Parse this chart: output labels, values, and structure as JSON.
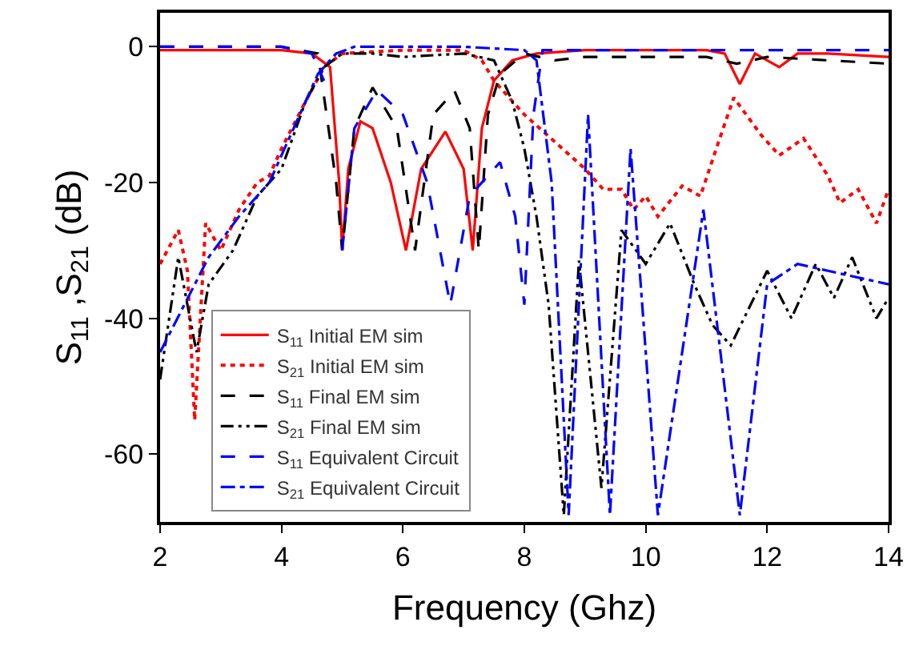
{
  "chart_data": {
    "type": "line",
    "xlabel": "Frequency (Ghz)",
    "ylabel": "S$_{11}$ ,S$_{21}$ (dB)",
    "xlim": [
      2,
      14
    ],
    "ylim": [
      -70,
      5
    ],
    "xticks": [
      2,
      4,
      6,
      8,
      10,
      12,
      14
    ],
    "yticks": [
      -60,
      -40,
      -20,
      0
    ],
    "legend": "bottom left",
    "marker": "none",
    "series": [
      {
        "name": "S$_{11}$ Initial EM sim",
        "color": "#ff0000",
        "line_style": "solid",
        "x": [
          2,
          3,
          4,
          4.5,
          4.8,
          4.95,
          5.0,
          5.1,
          5.3,
          5.5,
          5.8,
          6.05,
          6.3,
          6.7,
          7.0,
          7.15,
          7.3,
          7.5,
          7.8,
          8.2,
          9,
          10,
          11,
          11.3,
          11.55,
          11.8,
          12.2,
          12.5,
          13,
          14
        ],
        "values": [
          -0.5,
          -0.5,
          -0.5,
          -1,
          -3,
          -20,
          -30,
          -18,
          -11,
          -12,
          -20,
          -30,
          -18,
          -12.5,
          -18,
          -30,
          -12,
          -5,
          -2,
          -1,
          -0.5,
          -0.5,
          -0.5,
          -1,
          -5.5,
          -1,
          -3,
          -1,
          -1,
          -1.5
        ]
      },
      {
        "name": "S$_{21}$ Initial EM sim",
        "color": "#ff0000",
        "line_style": "dotted",
        "x": [
          2,
          2.3,
          2.45,
          2.57,
          2.75,
          3.0,
          3.3,
          3.6,
          3.8,
          4.0,
          4.4,
          4.7,
          5,
          6,
          7,
          7.3,
          7.5,
          8,
          8.5,
          9,
          9.3,
          9.6,
          9.8,
          10,
          10.2,
          10.6,
          10.9,
          11.2,
          11.45,
          11.9,
          12.2,
          12.6,
          13,
          13.2,
          13.5,
          13.8,
          14
        ],
        "values": [
          -32,
          -27,
          -33,
          -55,
          -26,
          -30,
          -24,
          -20,
          -19,
          -15,
          -8,
          -3,
          -1,
          -0.5,
          -0.5,
          -2,
          -5,
          -10,
          -14,
          -18,
          -21,
          -21,
          -24,
          -22,
          -25,
          -20.5,
          -22,
          -14,
          -7.5,
          -13,
          -16,
          -13.5,
          -19,
          -23,
          -21,
          -26,
          -21
        ]
      },
      {
        "name": "S$_{11}$ Final EM sim",
        "color": "#000000",
        "line_style": "dashed",
        "x": [
          2,
          3,
          4,
          4.6,
          4.9,
          5.0,
          5.2,
          5.5,
          5.9,
          6.2,
          6.5,
          6.85,
          7.1,
          7.25,
          7.4,
          7.6,
          8,
          8.5,
          9,
          10,
          11,
          11.5,
          12,
          13,
          14
        ],
        "values": [
          0,
          0,
          0,
          -1,
          -20,
          -30,
          -12,
          -6,
          -12,
          -30,
          -10,
          -6.5,
          -12,
          -30,
          -10,
          -4,
          -1,
          -2,
          -1.5,
          -1.5,
          -1.5,
          -2.5,
          -1.5,
          -2,
          -2.5
        ]
      },
      {
        "name": "S$_{21}$ Final EM sim",
        "color": "#000000",
        "line_style": "dashdotdot",
        "x": [
          2,
          2.3,
          2.6,
          2.8,
          3.2,
          3.6,
          4.0,
          4.4,
          4.7,
          5.0,
          5.5,
          6,
          7,
          7.5,
          7.8,
          8.0,
          8.2,
          8.4,
          8.65,
          8.9,
          9.27,
          9.6,
          10.0,
          10.4,
          10.8,
          11.1,
          11.4,
          12.0,
          12.4,
          12.8,
          13.1,
          13.4,
          13.8,
          14
        ],
        "values": [
          -49,
          -31,
          -45,
          -35,
          -30,
          -22,
          -18,
          -8,
          -3,
          -1,
          -1,
          -1.5,
          -1,
          -2,
          -8,
          -15,
          -25,
          -38,
          -69,
          -31.5,
          -65,
          -27,
          -32,
          -26,
          -35,
          -41,
          -44,
          -33,
          -40,
          -32,
          -37,
          -31,
          -40,
          -37
        ]
      },
      {
        "name": "S$_{11}$ Equivalent Circuit",
        "color": "#0000ff",
        "line_style": "dashed",
        "x": [
          2,
          3,
          4,
          4.5,
          4.7,
          4.87,
          5.0,
          5.2,
          5.57,
          6.0,
          6.4,
          6.78,
          7.1,
          7.6,
          7.85,
          8.0,
          8.15,
          8.3,
          9,
          10,
          11,
          12,
          13,
          14
        ],
        "values": [
          0,
          0,
          0,
          -1,
          -5,
          null,
          -30,
          -12,
          -6.4,
          -10,
          -20,
          -38,
          -22,
          -17,
          -25,
          -38,
          -10,
          -0.5,
          -0.5,
          -0.5,
          -0.5,
          -0.5,
          -0.5,
          -0.5
        ]
      },
      {
        "name": "S$_{21}$ Equivalent Circuit",
        "color": "#0000ff",
        "line_style": "dashdot",
        "x": [
          2,
          2.8,
          3.3,
          3.8,
          4.3,
          4.6,
          4.9,
          5.2,
          6,
          7,
          8.0,
          8.2,
          8.45,
          8.73,
          9.05,
          9.41,
          9.75,
          10.2,
          10.95,
          11.55,
          12.0,
          12.5,
          13,
          14
        ],
        "values": [
          -45,
          -31,
          -25,
          -20,
          -10,
          -4,
          -1,
          0,
          0,
          0,
          -0.5,
          -2,
          -20,
          -69,
          -10,
          -69,
          -15,
          -69,
          -24,
          -69,
          -35,
          -32,
          -33,
          -35
        ]
      }
    ]
  }
}
